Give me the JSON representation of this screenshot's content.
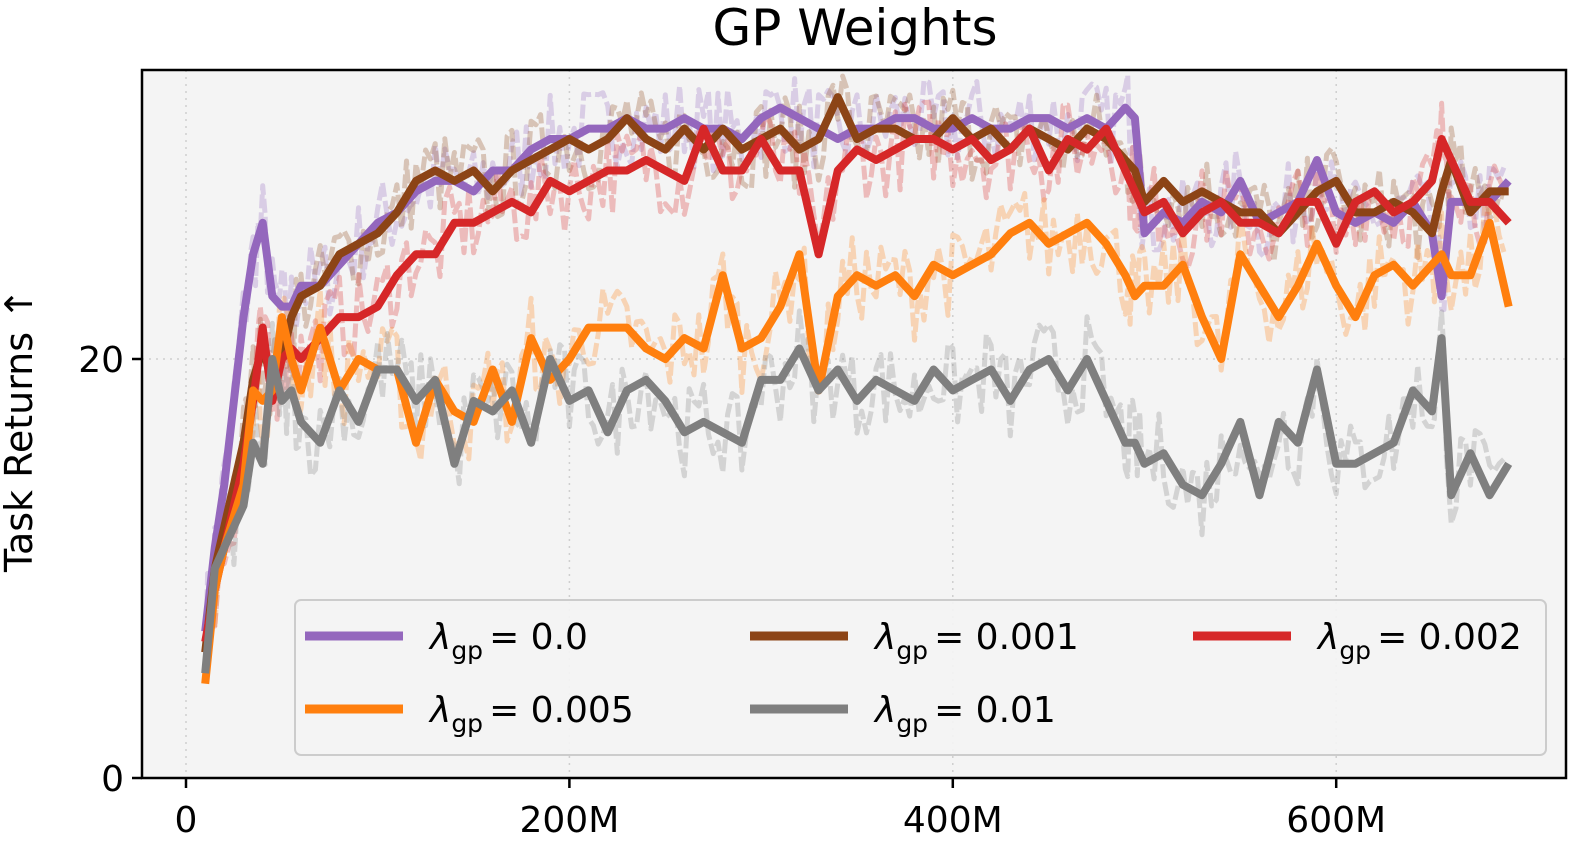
{
  "chart_data": {
    "type": "line",
    "title": "GP Weights",
    "xlabel": "",
    "ylabel": "Task Returns ↑",
    "xlim": [
      -23,
      720
    ],
    "ylim": [
      0,
      34
    ],
    "xticks": [
      0,
      200,
      400,
      600
    ],
    "xtick_labels": [
      "0",
      "200M",
      "400M",
      "600M"
    ],
    "yticks": [
      0,
      20
    ],
    "ytick_labels": [
      "0",
      "20"
    ],
    "grid": true,
    "legend": {
      "location": "lower-right",
      "ncol": 3
    },
    "x": [
      10,
      15,
      20,
      30,
      35,
      40,
      45,
      50,
      55,
      60,
      70,
      80,
      90,
      100,
      110,
      120,
      130,
      140,
      150,
      160,
      170,
      180,
      190,
      200,
      210,
      220,
      230,
      240,
      250,
      260,
      270,
      280,
      290,
      300,
      310,
      320,
      330,
      340,
      350,
      360,
      370,
      380,
      390,
      400,
      410,
      420,
      430,
      440,
      450,
      460,
      470,
      480,
      490,
      495,
      500,
      510,
      520,
      530,
      540,
      550,
      560,
      570,
      580,
      590,
      600,
      610,
      620,
      630,
      640,
      650,
      655,
      660,
      670,
      680,
      690
    ],
    "series": [
      {
        "name": "λgp = 0.0",
        "label_symbol": "λ",
        "label_sub": "gp",
        "label_value": "= 0.0",
        "color": "#9467bd",
        "values": [
          7.0,
          11,
          14,
          22,
          25.0,
          26.5,
          23,
          22.5,
          22.5,
          23.5,
          23.5,
          24.5,
          25.5,
          26.5,
          27,
          28,
          28.5,
          28.5,
          28.0,
          29.0,
          29.0,
          30.0,
          30.5,
          30.5,
          31.0,
          31.0,
          31.5,
          31.0,
          31.0,
          31.5,
          31.0,
          31.0,
          30.5,
          31.5,
          32.0,
          31.5,
          31.0,
          30.5,
          31.0,
          31.0,
          31.5,
          31.5,
          31.0,
          31.0,
          31.5,
          31.0,
          31.0,
          31.5,
          31.5,
          31.0,
          31.5,
          31.0,
          32.0,
          31.5,
          26.0,
          27.0,
          26.5,
          27.5,
          27.0,
          28.5,
          26.5,
          27.0,
          27.5,
          29.5,
          27.0,
          26.5,
          27.0,
          26.5,
          27.5,
          26.0,
          23.0,
          27.5,
          27.5,
          27.5,
          28.5
        ]
      },
      {
        "name": "λgp = 0.001",
        "label_symbol": "λ",
        "label_sub": "gp",
        "label_value": "= 0.001",
        "color": "#8c4416",
        "values": [
          6.0,
          10,
          12,
          16.0,
          19,
          20.5,
          19,
          20,
          22,
          23.0,
          23.5,
          25.0,
          25.5,
          26.0,
          27.0,
          28.5,
          29.0,
          28.5,
          29.0,
          28.0,
          29.0,
          29.5,
          30.0,
          30.5,
          30.0,
          30.5,
          31.5,
          30.5,
          30.0,
          31.0,
          30.0,
          31.0,
          30.0,
          30.5,
          31.0,
          30.0,
          30.5,
          32.5,
          30.5,
          31.0,
          31.0,
          30.5,
          30.5,
          31.5,
          30.5,
          31.0,
          30.0,
          31.0,
          30.5,
          30.0,
          31.0,
          30.5,
          29.5,
          29.0,
          27.5,
          28.5,
          27.5,
          28.0,
          27.5,
          27.0,
          27.0,
          26.0,
          27.0,
          28.0,
          28.5,
          27.0,
          27.0,
          27.5,
          27.0,
          26.0,
          28.0,
          29.5,
          27.0,
          28.0,
          28.0
        ]
      },
      {
        "name": "λgp = 0.002",
        "label_symbol": "λ",
        "label_sub": "gp",
        "label_value": "= 0.002",
        "color": "#d62728",
        "values": [
          6.5,
          9,
          11,
          15.0,
          18.0,
          21.5,
          18,
          20,
          20.5,
          20.0,
          21.0,
          22.0,
          22.0,
          22.5,
          24.0,
          25.0,
          25.0,
          26.5,
          26.5,
          27.0,
          27.5,
          27.0,
          28.5,
          28.0,
          28.5,
          29.0,
          29.0,
          29.5,
          29.0,
          28.5,
          31.0,
          29.0,
          29.0,
          30.5,
          29.0,
          29.0,
          25.0,
          29.0,
          30.0,
          29.5,
          30.0,
          30.5,
          30.5,
          30.0,
          30.5,
          29.5,
          30.0,
          31.0,
          29.0,
          30.5,
          30.0,
          31.0,
          29.0,
          28.0,
          27.0,
          27.5,
          26.0,
          27.0,
          27.5,
          26.5,
          26.5,
          26.0,
          27.5,
          27.5,
          25.5,
          27.5,
          28.0,
          27.0,
          27.5,
          28.5,
          30.5,
          29.5,
          27.5,
          27.5,
          26.5
        ]
      },
      {
        "name": "λgp = 0.005",
        "label_symbol": "λ",
        "label_sub": "gp",
        "label_value": "= 0.005",
        "color": "#ff7f0e",
        "values": [
          4.5,
          9,
          11,
          14.0,
          18.5,
          18.0,
          18.5,
          22.0,
          20.0,
          18.5,
          21.5,
          18.5,
          20.0,
          19.5,
          19.5,
          16.0,
          19.0,
          17.5,
          17.0,
          19.5,
          17.0,
          21.0,
          19.0,
          20.0,
          21.5,
          21.5,
          21.5,
          20.5,
          20.0,
          21.0,
          20.5,
          24.0,
          20.5,
          21.0,
          22.5,
          25.0,
          18.5,
          23.0,
          24.0,
          23.5,
          24.0,
          23.0,
          24.5,
          24.0,
          24.5,
          25.0,
          26.0,
          26.5,
          25.5,
          26.0,
          26.5,
          25.5,
          24.0,
          23.0,
          23.5,
          23.5,
          24.5,
          22.0,
          20.0,
          25.0,
          23.5,
          22.0,
          23.5,
          25.5,
          23.5,
          22.0,
          24.0,
          24.5,
          23.5,
          24.5,
          25.0,
          24.0,
          24.0,
          26.5,
          22.5
        ]
      },
      {
        "name": "λgp = 0.01",
        "label_symbol": "λ",
        "label_sub": "gp",
        "label_value": "= 0.01",
        "color": "#7f7f7f",
        "values": [
          5.0,
          10,
          11,
          13.0,
          16.0,
          15.0,
          20.0,
          18.0,
          18.5,
          17.0,
          16.0,
          18.5,
          17.0,
          19.5,
          19.5,
          18.0,
          19.0,
          15.0,
          18.0,
          17.5,
          18.5,
          16.0,
          20.0,
          18.0,
          18.5,
          16.5,
          18.5,
          19.0,
          18.0,
          16.5,
          17.0,
          16.5,
          16.0,
          19.0,
          19.0,
          20.5,
          18.5,
          19.5,
          18.0,
          19.0,
          18.5,
          18.0,
          19.5,
          18.5,
          19.0,
          19.5,
          18.0,
          19.5,
          20.0,
          18.5,
          20.0,
          18.0,
          16.0,
          16.0,
          15.0,
          15.5,
          14.0,
          13.5,
          15.0,
          17.0,
          13.5,
          17.0,
          16.0,
          19.5,
          15.0,
          15.0,
          15.5,
          16.0,
          18.5,
          17.5,
          21.0,
          13.5,
          15.5,
          13.5,
          15.0
        ]
      }
    ]
  }
}
